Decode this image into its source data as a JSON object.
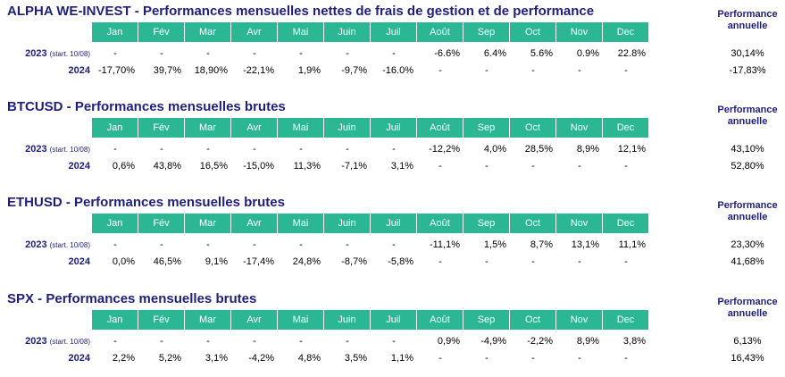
{
  "months": [
    "Jan",
    "Fév",
    "Mar",
    "Avr",
    "Mai",
    "Juin",
    "Juil",
    "Août",
    "Sep",
    "Oct",
    "Nov",
    "Dec"
  ],
  "perf_header_line1": "Performance",
  "perf_header_line2": "annuelle",
  "colors": {
    "header_fill": "#2bb794",
    "title": "#1f1f7a"
  },
  "sections": [
    {
      "title": "ALPHA WE-INVEST - Performances mensuelles nettes de frais de gestion et de performance",
      "rows": [
        {
          "year": "2023",
          "note": "(start. 10/08)",
          "values": [
            "-",
            "-",
            "-",
            "-",
            "-",
            "-",
            "-",
            "-6.6%",
            "6.4%",
            "5.6%",
            "0.9%",
            "22.8%"
          ],
          "annual": "30,14%"
        },
        {
          "year": "2024",
          "note": "",
          "values": [
            "-17,70%",
            "39,7%",
            "18,90%",
            "-22,1%",
            "1,9%",
            "-9,7%",
            "-16.0%",
            "-",
            "-",
            "-",
            "-",
            "-"
          ],
          "annual": "-17,83%"
        }
      ]
    },
    {
      "title": "BTCUSD - Performances mensuelles brutes",
      "rows": [
        {
          "year": "2023",
          "note": "(start. 10/08)",
          "values": [
            "-",
            "-",
            "-",
            "-",
            "-",
            "-",
            "-",
            "-12,2%",
            "4,0%",
            "28,5%",
            "8,9%",
            "12,1%"
          ],
          "annual": "43,10%"
        },
        {
          "year": "2024",
          "note": "",
          "values": [
            "0,6%",
            "43,8%",
            "16,5%",
            "-15,0%",
            "11,3%",
            "-7,1%",
            "3,1%",
            "-",
            "-",
            "-",
            "-",
            "-"
          ],
          "annual": "52,80%"
        }
      ]
    },
    {
      "title": "ETHUSD - Performances mensuelles brutes",
      "rows": [
        {
          "year": "2023",
          "note": "(start. 10/08)",
          "values": [
            "-",
            "-",
            "-",
            "-",
            "-",
            "-",
            "-",
            "-11,1%",
            "1,5%",
            "8,7%",
            "13,1%",
            "11,1%"
          ],
          "annual": "23,30%"
        },
        {
          "year": "2024",
          "note": "",
          "values": [
            "0,0%",
            "46,5%",
            "9,1%",
            "-17,4%",
            "24,8%",
            "-8,7%",
            "-5,8%",
            "-",
            "-",
            "-",
            "-",
            "-"
          ],
          "annual": "41,68%"
        }
      ]
    },
    {
      "title": "SPX - Performances mensuelles brutes",
      "rows": [
        {
          "year": "2023",
          "note": "(start. 10/08)",
          "values": [
            "-",
            "-",
            "-",
            "-",
            "-",
            "-",
            "-",
            "0,9%",
            "-4,9%",
            "-2,2%",
            "8,9%",
            "3,8%"
          ],
          "annual": "6,13%"
        },
        {
          "year": "2024",
          "note": "",
          "values": [
            "2,2%",
            "5,2%",
            "3,1%",
            "-4,2%",
            "4,8%",
            "3,5%",
            "1,1%",
            "-",
            "-",
            "-",
            "-",
            "-"
          ],
          "annual": "16,43%"
        }
      ]
    }
  ]
}
